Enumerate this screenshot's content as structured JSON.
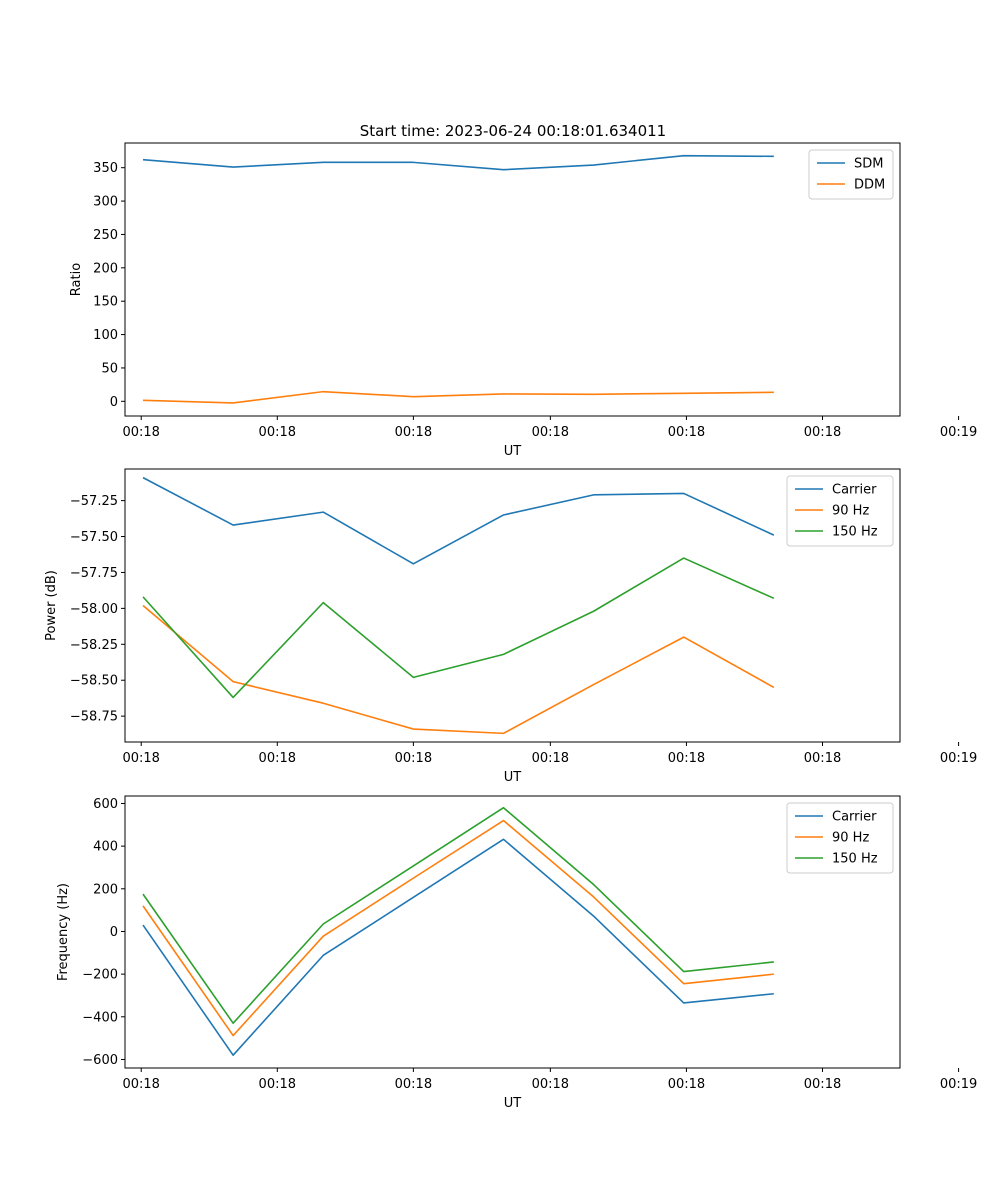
{
  "title": "Start time: 2023-06-24 00:18:01.634011",
  "colors": {
    "blue": "#1f77b4",
    "orange": "#ff7f0e",
    "green": "#2ca02c",
    "axes": "#000000",
    "legend_border": "#cccccc"
  },
  "chart_data": [
    {
      "type": "line",
      "title": "Start time: 2023-06-24 00:18:01.634011",
      "xlabel": "UT",
      "ylabel": "Ratio",
      "x": [
        1,
        2,
        3,
        4,
        5,
        6,
        7,
        8
      ],
      "xlim": [
        0.8,
        9.4
      ],
      "x_ticks": [
        0.98,
        2.49,
        4.0,
        5.52,
        7.03,
        8.54,
        10.05
      ],
      "x_tick_labels": [
        "00:18",
        "00:18",
        "00:18",
        "00:18",
        "00:18",
        "00:18",
        "00:19"
      ],
      "ylim": [
        -22,
        387
      ],
      "y_ticks": [
        0,
        50,
        100,
        150,
        200,
        250,
        300,
        350
      ],
      "y_tick_labels": [
        "0",
        "50",
        "100",
        "150",
        "200",
        "250",
        "300",
        "350"
      ],
      "legend_position": "top-right",
      "grid": false,
      "series": [
        {
          "name": "SDM",
          "color": "#1f77b4",
          "values": [
            362,
            351,
            358,
            358,
            347,
            354,
            368,
            367
          ]
        },
        {
          "name": "DDM",
          "color": "#ff7f0e",
          "values": [
            1.5,
            -2.5,
            14.5,
            7.0,
            11.0,
            10.5,
            12.0,
            13.5
          ]
        }
      ]
    },
    {
      "type": "line",
      "title": "",
      "xlabel": "UT",
      "ylabel": "Power (dB)",
      "x": [
        1,
        2,
        3,
        4,
        5,
        6,
        7,
        8
      ],
      "xlim": [
        0.8,
        9.4
      ],
      "x_ticks": [
        0.98,
        2.49,
        4.0,
        5.52,
        7.03,
        8.54,
        10.05
      ],
      "x_tick_labels": [
        "00:18",
        "00:18",
        "00:18",
        "00:18",
        "00:18",
        "00:18",
        "00:19"
      ],
      "ylim": [
        -58.93,
        -57.03
      ],
      "y_ticks": [
        -57.25,
        -57.5,
        -57.75,
        -58.0,
        -58.25,
        -58.5,
        -58.75
      ],
      "y_tick_labels": [
        "−57.25",
        "−57.50",
        "−57.75",
        "−58.00",
        "−58.25",
        "−58.50",
        "−58.75"
      ],
      "legend_position": "top-right",
      "grid": false,
      "series": [
        {
          "name": "Carrier",
          "color": "#1f77b4",
          "values": [
            -57.09,
            -57.42,
            -57.33,
            -57.69,
            -57.35,
            -57.21,
            -57.2,
            -57.49
          ]
        },
        {
          "name": "90 Hz",
          "color": "#ff7f0e",
          "values": [
            -57.98,
            -58.51,
            -58.66,
            -58.84,
            -58.87,
            -58.53,
            -58.2,
            -58.55
          ]
        },
        {
          "name": "150 Hz",
          "color": "#2ca02c",
          "values": [
            -57.92,
            -58.62,
            -57.96,
            -58.48,
            -58.32,
            -58.02,
            -57.65,
            -57.93
          ]
        }
      ]
    },
    {
      "type": "line",
      "title": "",
      "xlabel": "UT",
      "ylabel": "Frequency (Hz)",
      "x": [
        1,
        2,
        3,
        4,
        5,
        6,
        7,
        8
      ],
      "xlim": [
        0.8,
        9.4
      ],
      "x_ticks": [
        0.98,
        2.49,
        4.0,
        5.52,
        7.03,
        8.54,
        10.05
      ],
      "x_tick_labels": [
        "00:18",
        "00:18",
        "00:18",
        "00:18",
        "00:18",
        "00:18",
        "00:19"
      ],
      "ylim": [
        -640,
        635
      ],
      "y_ticks": [
        600,
        400,
        200,
        0,
        -200,
        -400,
        -600
      ],
      "y_tick_labels": [
        "600",
        "400",
        "200",
        "0",
        "−200",
        "−400",
        "−600"
      ],
      "legend_position": "top-right",
      "grid": false,
      "series": [
        {
          "name": "Carrier",
          "color": "#1f77b4",
          "values": [
            30,
            -580,
            -112,
            160,
            432,
            72,
            -335,
            -292
          ]
        },
        {
          "name": "90 Hz",
          "color": "#ff7f0e",
          "values": [
            120,
            -488,
            -22,
            250,
            520,
            162,
            -245,
            -200
          ]
        },
        {
          "name": "150 Hz",
          "color": "#2ca02c",
          "values": [
            175,
            -430,
            35,
            307,
            580,
            220,
            -188,
            -143
          ]
        }
      ]
    }
  ]
}
